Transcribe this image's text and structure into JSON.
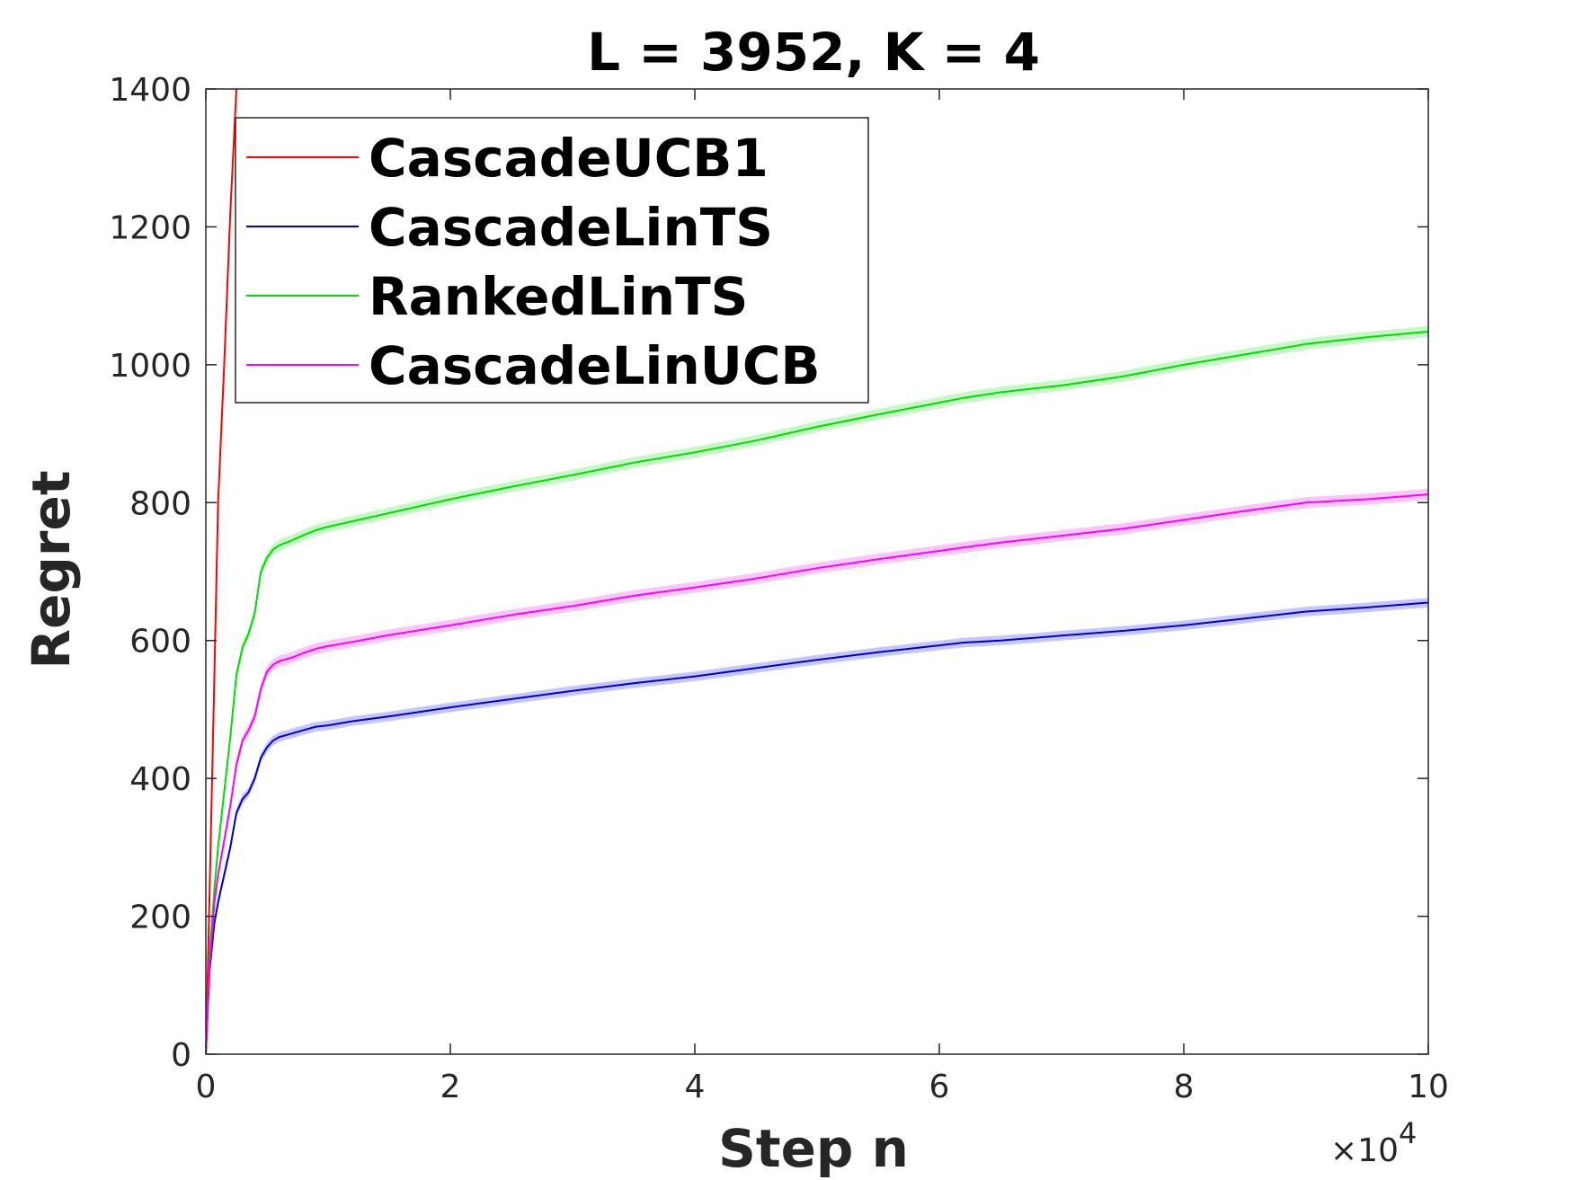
{
  "chart_data": {
    "type": "line",
    "title": "L = 3952, K = 4",
    "xlabel": "Step n",
    "ylabel": "Regret",
    "x_multiplier_label": "×10",
    "x_multiplier_exponent": "4",
    "xlim": [
      0,
      100000
    ],
    "ylim": [
      0,
      1400
    ],
    "xticks": [
      0,
      20000,
      40000,
      60000,
      80000,
      100000
    ],
    "xtick_labels": [
      "0",
      "2",
      "4",
      "6",
      "8",
      "10"
    ],
    "yticks": [
      0,
      200,
      400,
      600,
      800,
      1000,
      1200,
      1400
    ],
    "ytick_labels": [
      "0",
      "200",
      "400",
      "600",
      "800",
      "1000",
      "1200",
      "1400"
    ],
    "grid": false,
    "legend_position": "top-left",
    "series": [
      {
        "name": "CascadeUCB1",
        "color": "#ff0000",
        "band_color": "#ffb3b3",
        "band_halfwidth": 0,
        "x": [
          0,
          300,
          700,
          1000,
          1500,
          2000,
          2500
        ],
        "y": [
          0,
          230,
          550,
          800,
          1000,
          1220,
          1400
        ]
      },
      {
        "name": "CascadeLinTS",
        "color": "#0000cc",
        "band_color": "#b3b3ff",
        "band_halfwidth": 7,
        "x": [
          0,
          300,
          700,
          1000,
          1500,
          2000,
          2500,
          3000,
          3500,
          4000,
          4500,
          5000,
          5500,
          6000,
          7000,
          8000,
          9000,
          10000,
          12000,
          15000,
          20000,
          25000,
          30000,
          35000,
          40000,
          45000,
          50000,
          55000,
          60000,
          62000,
          65000,
          70000,
          75000,
          80000,
          85000,
          90000,
          95000,
          100000
        ],
        "y": [
          0,
          120,
          190,
          220,
          260,
          300,
          350,
          370,
          380,
          400,
          430,
          445,
          455,
          460,
          465,
          470,
          475,
          477,
          483,
          490,
          503,
          515,
          527,
          538,
          548,
          560,
          572,
          583,
          593,
          597,
          600,
          607,
          614,
          622,
          632,
          642,
          648,
          655
        ]
      },
      {
        "name": "RankedLinTS",
        "color": "#00dd00",
        "band_color": "#b3f5b3",
        "band_halfwidth": 8,
        "x": [
          0,
          300,
          700,
          1000,
          1500,
          2000,
          2500,
          3000,
          3500,
          4000,
          4500,
          5000,
          5500,
          6000,
          7000,
          8000,
          9000,
          10000,
          12000,
          15000,
          20000,
          25000,
          30000,
          35000,
          40000,
          45000,
          50000,
          55000,
          60000,
          62000,
          65000,
          70000,
          75000,
          80000,
          85000,
          90000,
          95000,
          100000
        ],
        "y": [
          0,
          140,
          240,
          300,
          380,
          460,
          550,
          590,
          610,
          640,
          700,
          720,
          732,
          738,
          745,
          753,
          760,
          765,
          773,
          785,
          805,
          823,
          840,
          858,
          873,
          890,
          910,
          928,
          945,
          952,
          960,
          970,
          983,
          1000,
          1015,
          1030,
          1040,
          1048
        ]
      },
      {
        "name": "CascadeLinUCB",
        "color": "#ff00ff",
        "band_color": "#f7b3f7",
        "band_halfwidth": 8,
        "x": [
          0,
          300,
          700,
          1000,
          1500,
          2000,
          2500,
          3000,
          3500,
          4000,
          4500,
          5000,
          5500,
          6000,
          7000,
          8000,
          9000,
          10000,
          12000,
          15000,
          20000,
          25000,
          30000,
          35000,
          40000,
          45000,
          50000,
          55000,
          60000,
          62000,
          65000,
          70000,
          75000,
          80000,
          85000,
          90000,
          95000,
          100000
        ],
        "y": [
          0,
          130,
          220,
          260,
          310,
          360,
          420,
          455,
          470,
          490,
          530,
          555,
          565,
          570,
          575,
          582,
          588,
          592,
          598,
          608,
          622,
          637,
          650,
          665,
          677,
          690,
          705,
          718,
          730,
          735,
          742,
          752,
          762,
          775,
          788,
          800,
          805,
          812
        ]
      }
    ]
  }
}
